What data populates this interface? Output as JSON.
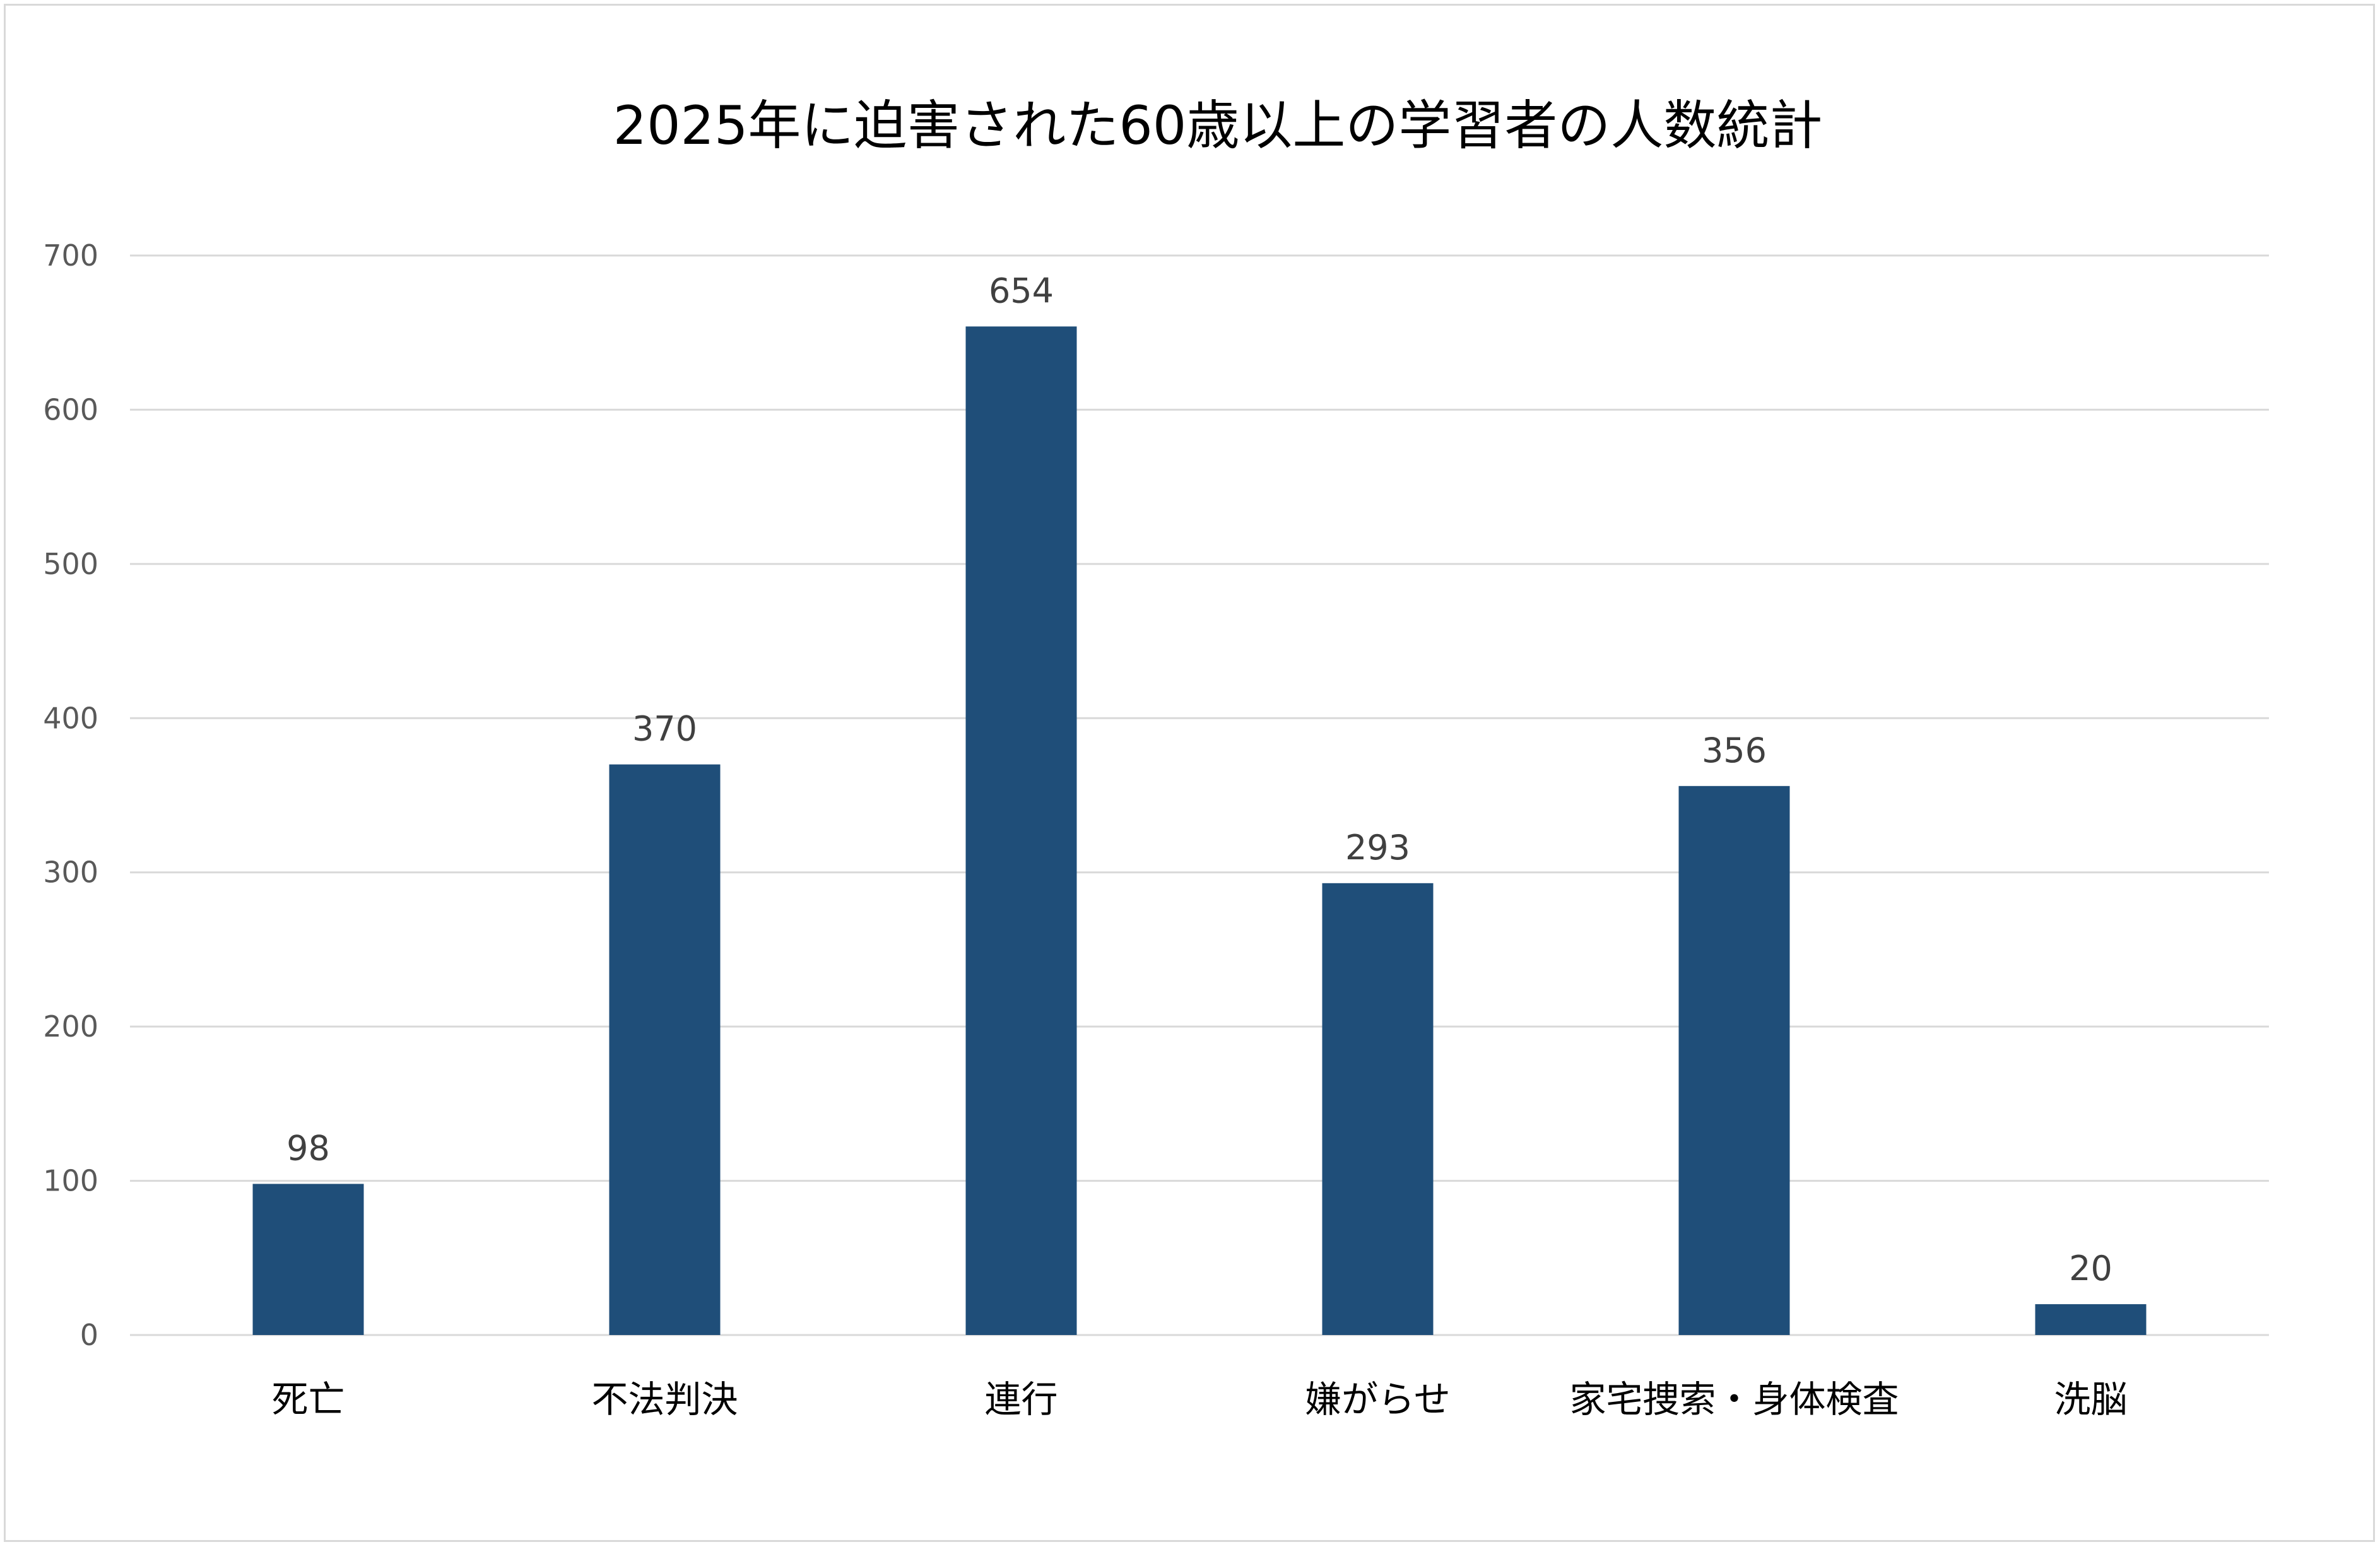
{
  "chart_data": {
    "type": "bar",
    "title": "2025年に迫害された60歳以上の学習者の人数統計",
    "xlabel": "",
    "ylabel": "",
    "categories": [
      "死亡",
      "不法判決",
      "連行",
      "嫌がらせ",
      "家宅捜索・身体検査",
      "洗脳"
    ],
    "values": [
      98,
      370,
      654,
      293,
      356,
      20
    ],
    "ylim": [
      0,
      700
    ],
    "yticks": [
      0,
      100,
      200,
      300,
      400,
      500,
      600,
      700
    ],
    "grid": true,
    "legend": "none",
    "data_labels": true,
    "bar_color": "#1f4e79",
    "grid_color": "#d9d9d9"
  }
}
